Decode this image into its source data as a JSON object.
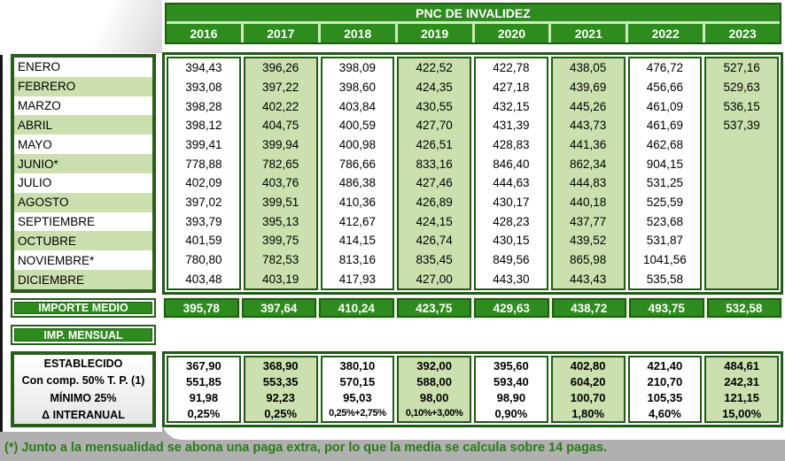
{
  "chart_data": {
    "type": "table",
    "title": "PNC DE INVALIDEZ",
    "years": [
      "2016",
      "2017",
      "2018",
      "2019",
      "2020",
      "2021",
      "2022",
      "2023"
    ],
    "months": [
      "ENERO",
      "FEBRERO",
      "MARZO",
      "ABRIL",
      "MAYO",
      "JUNIO*",
      "JULIO",
      "AGOSTO",
      "SEPTIEMBRE",
      "OCTUBRE",
      "NOVIEMBRE*",
      "DICIEMBRE"
    ],
    "series": [
      {
        "year": "2016",
        "monthly": [
          "394,43",
          "393,08",
          "398,28",
          "398,12",
          "399,41",
          "778,88",
          "402,09",
          "397,02",
          "393,79",
          "401,59",
          "780,80",
          "403,48"
        ],
        "importe_medio": "395,78",
        "establecido": "367,90",
        "con_comp_50": "551,85",
        "minimo_25": "91,98",
        "delta_interanual": "0,25%"
      },
      {
        "year": "2017",
        "monthly": [
          "396,26",
          "397,22",
          "402,22",
          "404,75",
          "399,94",
          "782,65",
          "403,76",
          "399,51",
          "395,13",
          "399,75",
          "782,53",
          "403,19"
        ],
        "importe_medio": "397,64",
        "establecido": "368,90",
        "con_comp_50": "553,35",
        "minimo_25": "92,23",
        "delta_interanual": "0,25%"
      },
      {
        "year": "2018",
        "monthly": [
          "398,09",
          "398,60",
          "403,84",
          "400,59",
          "400,98",
          "786,66",
          "486,38",
          "410,36",
          "412,67",
          "414,15",
          "813,16",
          "417,93"
        ],
        "importe_medio": "410,24",
        "establecido": "380,10",
        "con_comp_50": "570,15",
        "minimo_25": "95,03",
        "delta_interanual": "0,25%+2,75%"
      },
      {
        "year": "2019",
        "monthly": [
          "422,52",
          "424,35",
          "430,55",
          "427,70",
          "426,51",
          "833,16",
          "427,46",
          "426,89",
          "424,15",
          "426,74",
          "835,45",
          "427,00"
        ],
        "importe_medio": "423,75",
        "establecido": "392,00",
        "con_comp_50": "588,00",
        "minimo_25": "98,00",
        "delta_interanual": "0,10%+3,00%"
      },
      {
        "year": "2020",
        "monthly": [
          "422,78",
          "427,18",
          "432,15",
          "431,39",
          "428,83",
          "846,40",
          "444,63",
          "430,17",
          "428,23",
          "430,15",
          "849,56",
          "443,30"
        ],
        "importe_medio": "429,63",
        "establecido": "395,60",
        "con_comp_50": "593,40",
        "minimo_25": "98,90",
        "delta_interanual": "0,90%"
      },
      {
        "year": "2021",
        "monthly": [
          "438,05",
          "439,69",
          "445,26",
          "443,73",
          "441,36",
          "862,34",
          "444,83",
          "440,18",
          "437,77",
          "439,52",
          "865,98",
          "443,43"
        ],
        "importe_medio": "438,72",
        "establecido": "402,80",
        "con_comp_50": "604,20",
        "minimo_25": "100,70",
        "delta_interanual": "1,80%"
      },
      {
        "year": "2022",
        "monthly": [
          "476,72",
          "456,66",
          "461,09",
          "461,69",
          "462,68",
          "904,15",
          "531,25",
          "525,59",
          "523,68",
          "531,87",
          "1041,56",
          "535,58"
        ],
        "importe_medio": "493,75",
        "establecido": "421,40",
        "con_comp_50": "210,70",
        "minimo_25": "105,35",
        "delta_interanual": "4,60%"
      },
      {
        "year": "2023",
        "monthly": [
          "527,16",
          "529,63",
          "536,15",
          "537,39",
          "",
          "",
          "",
          "",
          "",
          "",
          "",
          ""
        ],
        "importe_medio": "532,58",
        "establecido": "484,61",
        "con_comp_50": "242,31",
        "minimo_25": "121,15",
        "delta_interanual": "15,00%"
      }
    ]
  },
  "labels": {
    "importe_medio": "IMPORTE MEDIO",
    "imp_mensual": "IMP. MENSUAL",
    "bottom_rows": [
      "ESTABLECIDO",
      "Con comp. 50% T. P. (1)",
      "MÍNIMO 25%",
      "Δ INTERANUAL"
    ]
  },
  "footnote": "(*) Junto a la mensualidad se abona una paga extra, por lo que la media se calcula sobre 14 pagas.",
  "colors": {
    "green": "#2e8b1e",
    "dark_green": "#1e5b15",
    "light_green": "#cbe0ae",
    "pale_green_strip": "#eaf4de",
    "footnote_green": "#2c7a18",
    "background_gray": "#b0b0b0"
  }
}
